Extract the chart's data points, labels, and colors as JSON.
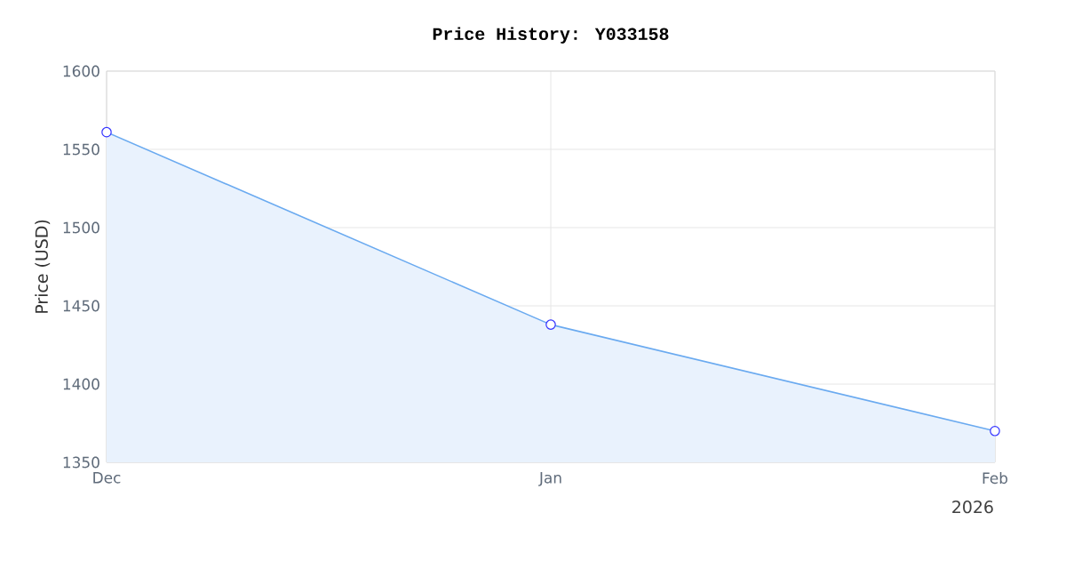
{
  "chart_data": {
    "type": "area",
    "title": "Price History: Y033158",
    "ylabel": "Price (USD)",
    "x": [
      "2025-12",
      "2026-01",
      "2026-02"
    ],
    "series": [
      {
        "color": "#6aaaf0",
        "values": [
          1561,
          1438,
          1370
        ]
      }
    ],
    "xlim": [
      "2025-12",
      "2026-02"
    ],
    "xticks": [
      {
        "value": "2025-12",
        "label": "Dec"
      },
      {
        "value": "2026-01",
        "label": "Jan"
      },
      {
        "value": "2026-02",
        "label": "Feb"
      }
    ],
    "ylim": [
      1350,
      1600
    ],
    "yticks": [
      1350,
      1400,
      1450,
      1500,
      1550,
      1600
    ],
    "annotations": [
      "2026"
    ],
    "grid": true,
    "marker": "circle",
    "line_style": "solid"
  }
}
